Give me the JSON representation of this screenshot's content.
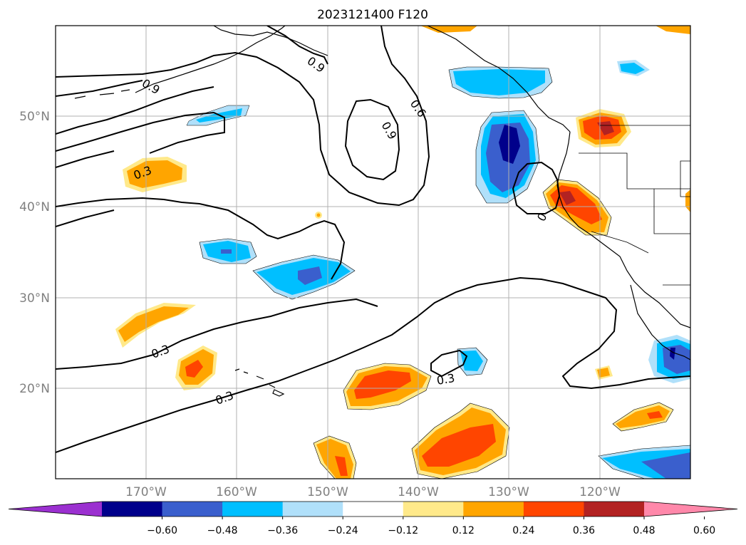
{
  "title": "2023121400 F120",
  "map": {
    "lon_range": [
      -180,
      -110
    ],
    "lat_range": [
      10,
      60
    ],
    "gridlines": true,
    "lon_labels": [
      "170°W",
      "160°W",
      "150°W",
      "140°W",
      "130°W",
      "120°W"
    ],
    "lat_labels": [
      "20°N",
      "30°N",
      "40°N",
      "50°N"
    ],
    "contour_labels": [
      "0.9",
      "0.9",
      "0.6",
      "0.9",
      "0.3",
      "0",
      "0.3",
      "0.3",
      "0.3"
    ]
  },
  "colorbar": {
    "tick_labels": [
      "−0.60",
      "−0.48",
      "−0.36",
      "−0.24",
      "−0.12",
      "0.12",
      "0.24",
      "0.36",
      "0.48",
      "0.60"
    ],
    "colors": [
      "#9b30d0",
      "#00008b",
      "#3a5fcd",
      "#00bfff",
      "#b0e0fa",
      "#ffffff",
      "#ffe98a",
      "#ffa500",
      "#ff4500",
      "#b22222",
      "#ff88aa"
    ],
    "extend": "both"
  },
  "colors": {
    "land_line": "#000000",
    "grid": "#b0b0b0",
    "axis_label": "#808080"
  }
}
